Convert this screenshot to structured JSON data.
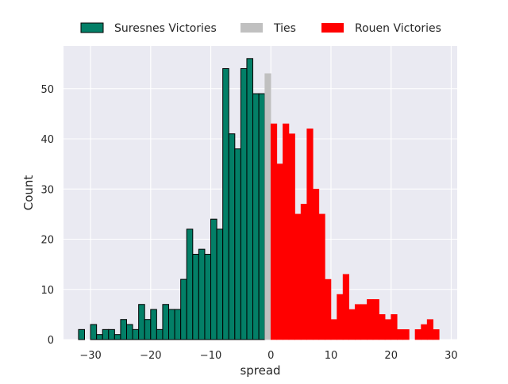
{
  "chart_data": {
    "type": "bar",
    "subtype": "histogram",
    "xlabel": "spread",
    "ylabel": "Count",
    "xlim": [
      -34.5,
      31.0
    ],
    "ylim": [
      0,
      58.5
    ],
    "xticks": [
      -30,
      -20,
      -10,
      0,
      10,
      20,
      30
    ],
    "yticks": [
      0,
      10,
      20,
      30,
      40,
      50
    ],
    "grid": true,
    "legend_position": "top-center",
    "bin_width": 1.0,
    "series": [
      {
        "name": "Suresnes Victories",
        "color": "#037f67",
        "edge": "#000000",
        "bins": [
          [
            -32,
            2
          ],
          [
            -31,
            0
          ],
          [
            -30,
            3
          ],
          [
            -29,
            1
          ],
          [
            -28,
            2
          ],
          [
            -27,
            2
          ],
          [
            -26,
            1
          ],
          [
            -25,
            4
          ],
          [
            -24,
            3
          ],
          [
            -23,
            2
          ],
          [
            -22,
            7
          ],
          [
            -21,
            4
          ],
          [
            -20,
            6
          ],
          [
            -19,
            2
          ],
          [
            -18,
            7
          ],
          [
            -17,
            6
          ],
          [
            -16,
            6
          ],
          [
            -15,
            12
          ],
          [
            -14,
            22
          ],
          [
            -13,
            17
          ],
          [
            -12,
            18
          ],
          [
            -11,
            17
          ],
          [
            -10,
            24
          ],
          [
            -9,
            22
          ],
          [
            -8,
            54
          ],
          [
            -7,
            41
          ],
          [
            -6,
            38
          ],
          [
            -5,
            54
          ],
          [
            -4,
            56
          ],
          [
            -3,
            49
          ],
          [
            -2,
            49
          ]
        ]
      },
      {
        "name": "Ties",
        "color": "#c0c0c0",
        "edge": "#c0c0c0",
        "bins": [
          [
            -1,
            53
          ]
        ]
      },
      {
        "name": "Rouen Victories",
        "color": "#ff0000",
        "edge": "#ff0000",
        "bins": [
          [
            0,
            43
          ],
          [
            1,
            35
          ],
          [
            2,
            43
          ],
          [
            3,
            41
          ],
          [
            4,
            25
          ],
          [
            5,
            27
          ],
          [
            6,
            42
          ],
          [
            7,
            30
          ],
          [
            8,
            25
          ],
          [
            9,
            12
          ],
          [
            10,
            4
          ],
          [
            11,
            9
          ],
          [
            12,
            13
          ],
          [
            13,
            6
          ],
          [
            14,
            7
          ],
          [
            15,
            7
          ],
          [
            16,
            8
          ],
          [
            17,
            8
          ],
          [
            18,
            5
          ],
          [
            19,
            4
          ],
          [
            20,
            5
          ],
          [
            21,
            2
          ],
          [
            22,
            2
          ],
          [
            23,
            0
          ],
          [
            24,
            2
          ],
          [
            25,
            3
          ],
          [
            26,
            4
          ],
          [
            27,
            2
          ]
        ]
      }
    ]
  }
}
